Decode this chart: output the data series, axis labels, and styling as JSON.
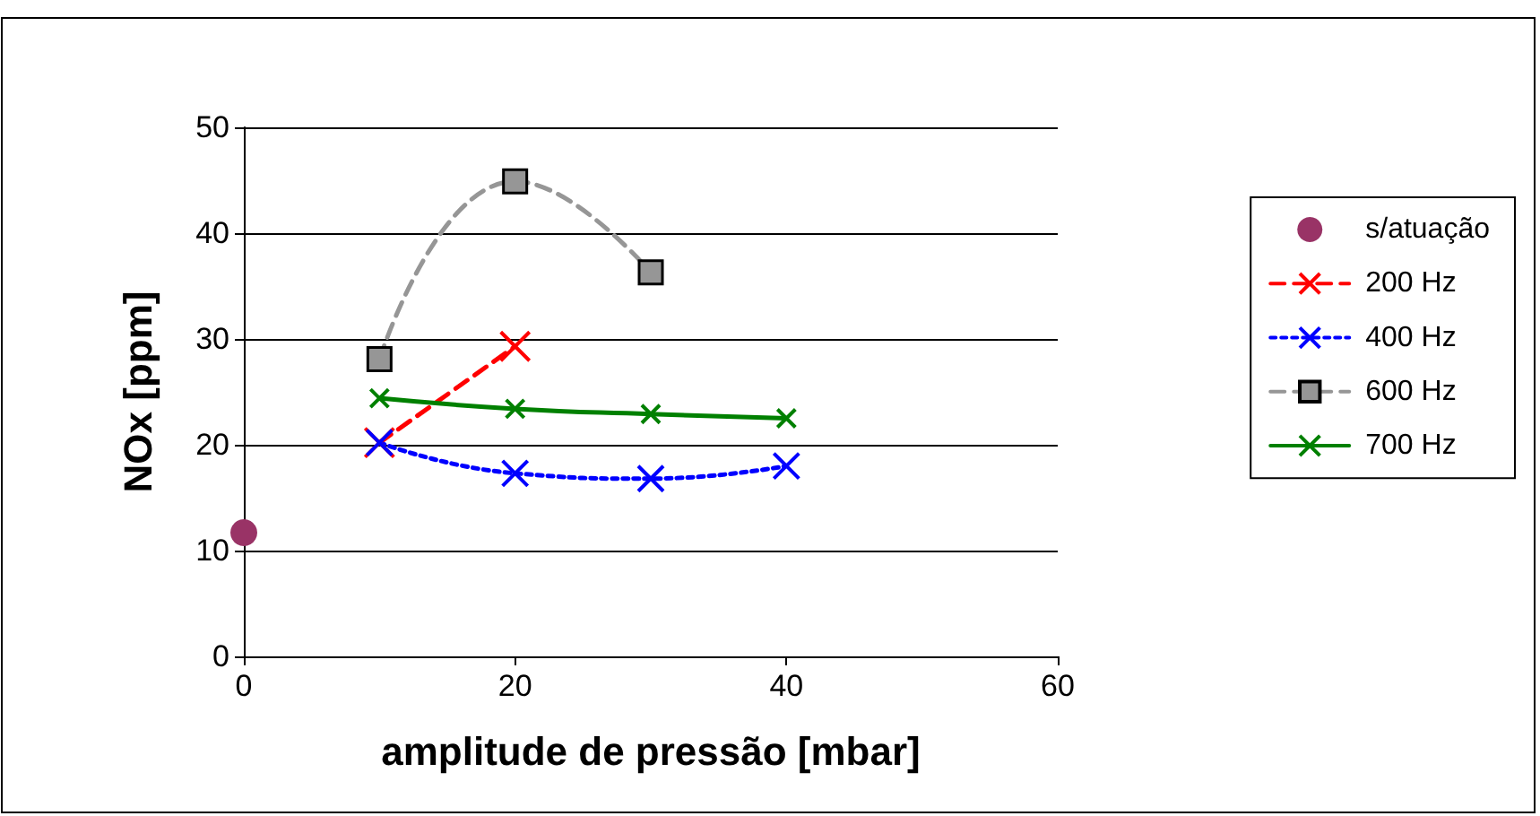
{
  "chart_data": {
    "type": "line",
    "xlabel": "amplitude de pressão [mbar]",
    "ylabel": "NOx [ppm]",
    "xlim": [
      0,
      60
    ],
    "xticks": [
      0,
      20,
      40,
      60
    ],
    "ylim": [
      0,
      50
    ],
    "yticks": [
      0,
      10,
      20,
      30,
      40,
      50
    ],
    "grid": "y",
    "legend": "right",
    "series": [
      {
        "name": "s/atuação",
        "type": "scatter",
        "marker": "circle",
        "color": "#993366",
        "x": [
          0
        ],
        "values": [
          11.7
        ]
      },
      {
        "name": "200 Hz",
        "color": "#ff0000",
        "marker": "cross",
        "line_style": "dashed",
        "x": [
          10,
          20
        ],
        "values": [
          20.2,
          29.3
        ]
      },
      {
        "name": "400 Hz",
        "color": "#0000ff",
        "marker": "cross",
        "line_style": "dotted",
        "x": [
          10,
          20,
          30,
          40
        ],
        "values": [
          20.2,
          17.3,
          16.8,
          18
        ]
      },
      {
        "name": "600 Hz",
        "color": "#969696",
        "marker": "square",
        "line_style": "dashed",
        "x": [
          10,
          20,
          30
        ],
        "values": [
          28.1,
          44.9,
          36.3
        ]
      },
      {
        "name": "700 Hz",
        "color": "#008000",
        "marker": "cross",
        "line_style": "solid",
        "x": [
          10,
          20,
          30,
          40
        ],
        "values": [
          24.4,
          23.4,
          22.9,
          22.5
        ]
      }
    ]
  }
}
